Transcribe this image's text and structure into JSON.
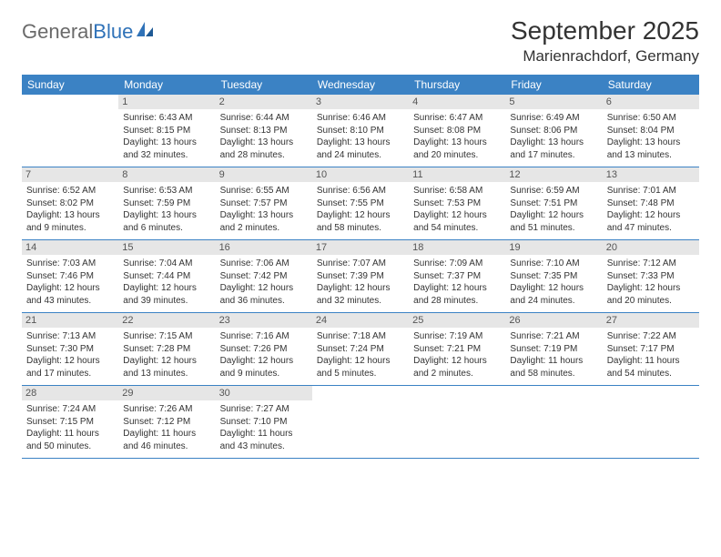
{
  "logo": {
    "general": "General",
    "blue": "Blue"
  },
  "title": "September 2025",
  "location": "Marienrachdorf, Germany",
  "colors": {
    "header_bg": "#3b82c4",
    "header_text": "#ffffff",
    "daynum_bg": "#e6e6e6",
    "border": "#3b82c4",
    "logo_gray": "#6a6a6a",
    "logo_blue": "#2f72b8"
  },
  "weekdays": [
    "Sunday",
    "Monday",
    "Tuesday",
    "Wednesday",
    "Thursday",
    "Friday",
    "Saturday"
  ],
  "weeks": [
    [
      {
        "blank": true
      },
      {
        "num": "1",
        "l1": "Sunrise: 6:43 AM",
        "l2": "Sunset: 8:15 PM",
        "l3": "Daylight: 13 hours",
        "l4": "and 32 minutes."
      },
      {
        "num": "2",
        "l1": "Sunrise: 6:44 AM",
        "l2": "Sunset: 8:13 PM",
        "l3": "Daylight: 13 hours",
        "l4": "and 28 minutes."
      },
      {
        "num": "3",
        "l1": "Sunrise: 6:46 AM",
        "l2": "Sunset: 8:10 PM",
        "l3": "Daylight: 13 hours",
        "l4": "and 24 minutes."
      },
      {
        "num": "4",
        "l1": "Sunrise: 6:47 AM",
        "l2": "Sunset: 8:08 PM",
        "l3": "Daylight: 13 hours",
        "l4": "and 20 minutes."
      },
      {
        "num": "5",
        "l1": "Sunrise: 6:49 AM",
        "l2": "Sunset: 8:06 PM",
        "l3": "Daylight: 13 hours",
        "l4": "and 17 minutes."
      },
      {
        "num": "6",
        "l1": "Sunrise: 6:50 AM",
        "l2": "Sunset: 8:04 PM",
        "l3": "Daylight: 13 hours",
        "l4": "and 13 minutes."
      }
    ],
    [
      {
        "num": "7",
        "l1": "Sunrise: 6:52 AM",
        "l2": "Sunset: 8:02 PM",
        "l3": "Daylight: 13 hours",
        "l4": "and 9 minutes."
      },
      {
        "num": "8",
        "l1": "Sunrise: 6:53 AM",
        "l2": "Sunset: 7:59 PM",
        "l3": "Daylight: 13 hours",
        "l4": "and 6 minutes."
      },
      {
        "num": "9",
        "l1": "Sunrise: 6:55 AM",
        "l2": "Sunset: 7:57 PM",
        "l3": "Daylight: 13 hours",
        "l4": "and 2 minutes."
      },
      {
        "num": "10",
        "l1": "Sunrise: 6:56 AM",
        "l2": "Sunset: 7:55 PM",
        "l3": "Daylight: 12 hours",
        "l4": "and 58 minutes."
      },
      {
        "num": "11",
        "l1": "Sunrise: 6:58 AM",
        "l2": "Sunset: 7:53 PM",
        "l3": "Daylight: 12 hours",
        "l4": "and 54 minutes."
      },
      {
        "num": "12",
        "l1": "Sunrise: 6:59 AM",
        "l2": "Sunset: 7:51 PM",
        "l3": "Daylight: 12 hours",
        "l4": "and 51 minutes."
      },
      {
        "num": "13",
        "l1": "Sunrise: 7:01 AM",
        "l2": "Sunset: 7:48 PM",
        "l3": "Daylight: 12 hours",
        "l4": "and 47 minutes."
      }
    ],
    [
      {
        "num": "14",
        "l1": "Sunrise: 7:03 AM",
        "l2": "Sunset: 7:46 PM",
        "l3": "Daylight: 12 hours",
        "l4": "and 43 minutes."
      },
      {
        "num": "15",
        "l1": "Sunrise: 7:04 AM",
        "l2": "Sunset: 7:44 PM",
        "l3": "Daylight: 12 hours",
        "l4": "and 39 minutes."
      },
      {
        "num": "16",
        "l1": "Sunrise: 7:06 AM",
        "l2": "Sunset: 7:42 PM",
        "l3": "Daylight: 12 hours",
        "l4": "and 36 minutes."
      },
      {
        "num": "17",
        "l1": "Sunrise: 7:07 AM",
        "l2": "Sunset: 7:39 PM",
        "l3": "Daylight: 12 hours",
        "l4": "and 32 minutes."
      },
      {
        "num": "18",
        "l1": "Sunrise: 7:09 AM",
        "l2": "Sunset: 7:37 PM",
        "l3": "Daylight: 12 hours",
        "l4": "and 28 minutes."
      },
      {
        "num": "19",
        "l1": "Sunrise: 7:10 AM",
        "l2": "Sunset: 7:35 PM",
        "l3": "Daylight: 12 hours",
        "l4": "and 24 minutes."
      },
      {
        "num": "20",
        "l1": "Sunrise: 7:12 AM",
        "l2": "Sunset: 7:33 PM",
        "l3": "Daylight: 12 hours",
        "l4": "and 20 minutes."
      }
    ],
    [
      {
        "num": "21",
        "l1": "Sunrise: 7:13 AM",
        "l2": "Sunset: 7:30 PM",
        "l3": "Daylight: 12 hours",
        "l4": "and 17 minutes."
      },
      {
        "num": "22",
        "l1": "Sunrise: 7:15 AM",
        "l2": "Sunset: 7:28 PM",
        "l3": "Daylight: 12 hours",
        "l4": "and 13 minutes."
      },
      {
        "num": "23",
        "l1": "Sunrise: 7:16 AM",
        "l2": "Sunset: 7:26 PM",
        "l3": "Daylight: 12 hours",
        "l4": "and 9 minutes."
      },
      {
        "num": "24",
        "l1": "Sunrise: 7:18 AM",
        "l2": "Sunset: 7:24 PM",
        "l3": "Daylight: 12 hours",
        "l4": "and 5 minutes."
      },
      {
        "num": "25",
        "l1": "Sunrise: 7:19 AM",
        "l2": "Sunset: 7:21 PM",
        "l3": "Daylight: 12 hours",
        "l4": "and 2 minutes."
      },
      {
        "num": "26",
        "l1": "Sunrise: 7:21 AM",
        "l2": "Sunset: 7:19 PM",
        "l3": "Daylight: 11 hours",
        "l4": "and 58 minutes."
      },
      {
        "num": "27",
        "l1": "Sunrise: 7:22 AM",
        "l2": "Sunset: 7:17 PM",
        "l3": "Daylight: 11 hours",
        "l4": "and 54 minutes."
      }
    ],
    [
      {
        "num": "28",
        "l1": "Sunrise: 7:24 AM",
        "l2": "Sunset: 7:15 PM",
        "l3": "Daylight: 11 hours",
        "l4": "and 50 minutes."
      },
      {
        "num": "29",
        "l1": "Sunrise: 7:26 AM",
        "l2": "Sunset: 7:12 PM",
        "l3": "Daylight: 11 hours",
        "l4": "and 46 minutes."
      },
      {
        "num": "30",
        "l1": "Sunrise: 7:27 AM",
        "l2": "Sunset: 7:10 PM",
        "l3": "Daylight: 11 hours",
        "l4": "and 43 minutes."
      },
      {
        "blank": true
      },
      {
        "blank": true
      },
      {
        "blank": true
      },
      {
        "blank": true
      }
    ]
  ]
}
